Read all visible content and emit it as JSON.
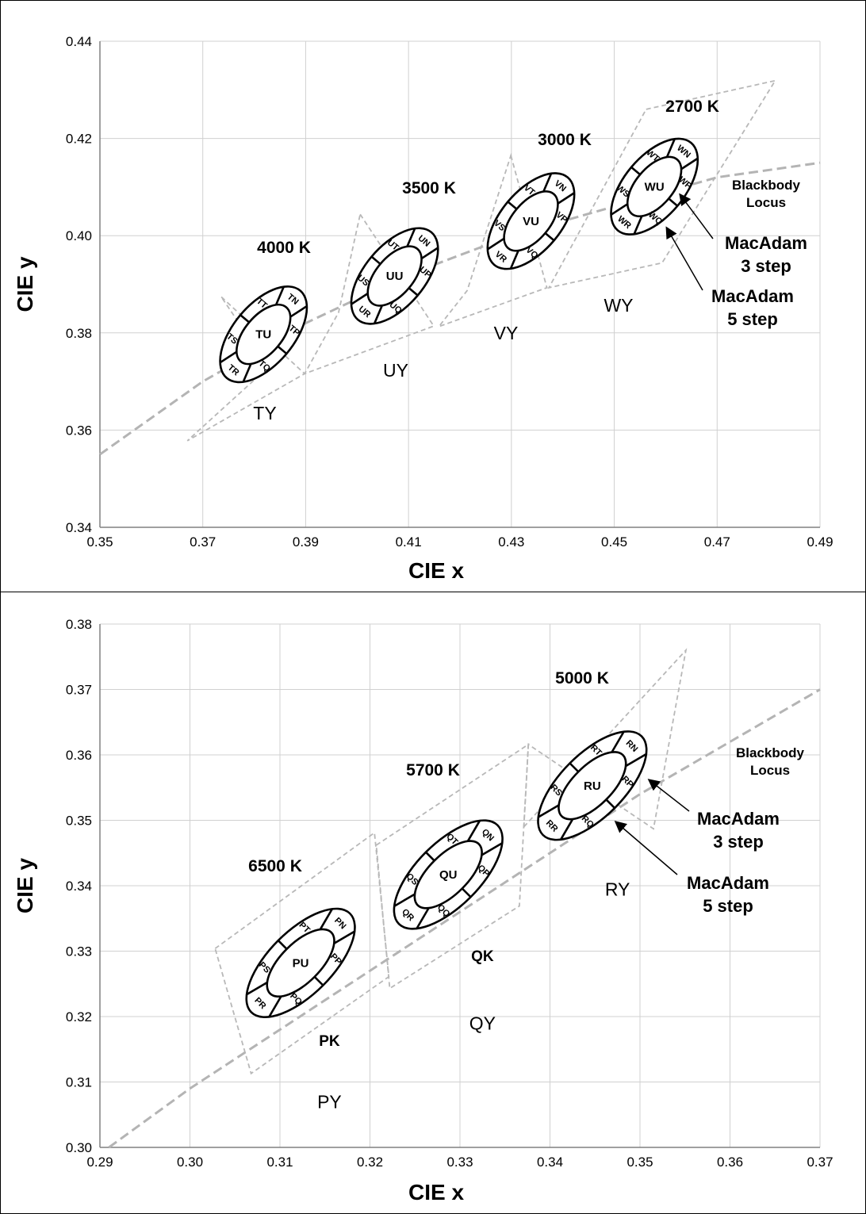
{
  "chart_data": [
    {
      "type": "scatter",
      "xlabel": "CIE x",
      "ylabel": "CIE y",
      "xlim": [
        0.35,
        0.49
      ],
      "ylim": [
        0.34,
        0.44
      ],
      "x_ticks": [
        "0.35",
        "0.37",
        "0.39",
        "0.41",
        "0.43",
        "0.45",
        "0.47",
        "0.49"
      ],
      "y_ticks": [
        "0.34",
        "0.36",
        "0.38",
        "0.40",
        "0.42",
        "0.44"
      ],
      "grid": true,
      "blackbody_label": [
        "Blackbody",
        "Locus"
      ],
      "blackbody_locus": [
        [
          0.35,
          0.355
        ],
        [
          0.37,
          0.37
        ],
        [
          0.39,
          0.382
        ],
        [
          0.41,
          0.392
        ],
        [
          0.43,
          0.4
        ],
        [
          0.45,
          0.406
        ],
        [
          0.47,
          0.412
        ],
        [
          0.49,
          0.415
        ]
      ],
      "macadam_3_label": [
        "MacAdam",
        "3 step"
      ],
      "macadam_5_label": [
        "MacAdam",
        "5 step"
      ],
      "quadrangles": [
        {
          "label": "TY",
          "corners": [
            [
              0.3736,
              0.3874
            ],
            [
              0.3898,
              0.3716
            ],
            [
              0.367,
              0.3578
            ],
            [
              0.3828,
              0.373
            ]
          ]
        },
        {
          "label": "UY",
          "corners": [
            [
              0.4006,
              0.4044
            ],
            [
              0.4149,
              0.3814
            ],
            [
              0.3898,
              0.3716
            ],
            [
              0.3964,
              0.3842
            ]
          ]
        },
        {
          "label": "VY",
          "corners": [
            [
              0.4299,
              0.4165
            ],
            [
              0.4369,
              0.3893
            ],
            [
              0.4159,
              0.3813
            ],
            [
              0.4214,
              0.3887
            ]
          ]
        },
        {
          "label": "WY",
          "corners": [
            [
              0.4562,
              0.426
            ],
            [
              0.4813,
              0.4319
            ],
            [
              0.4593,
              0.3944
            ],
            [
              0.4373,
              0.3893
            ]
          ]
        }
      ],
      "series": [
        {
          "name": "4000 K",
          "center": [
            0.3818,
            0.3797
          ],
          "center_bin": "TU",
          "bins": [
            "TN",
            "TP",
            "TQ",
            "TR",
            "TS",
            "TT"
          ],
          "label_offset": [
            0.3818,
            0.3944
          ]
        },
        {
          "name": "3500 K",
          "center": [
            0.4073,
            0.3917
          ],
          "center_bin": "UU",
          "bins": [
            "UN",
            "UP",
            "UQ",
            "UR",
            "US",
            "UT"
          ],
          "label_offset": [
            0.4073,
            0.4066
          ]
        },
        {
          "name": "3000 K",
          "center": [
            0.4338,
            0.403
          ],
          "center_bin": "VU",
          "bins": [
            "VN",
            "VP",
            "VQ",
            "VR",
            "VS",
            "VT"
          ],
          "label_offset": [
            0.4338,
            0.4173
          ]
        },
        {
          "name": "2700 K",
          "center": [
            0.4578,
            0.4101
          ],
          "center_bin": "WU",
          "bins": [
            "WN",
            "WP",
            "WQ",
            "WR",
            "WS",
            "WT"
          ],
          "label_offset": [
            0.464,
            0.424
          ]
        }
      ]
    },
    {
      "type": "scatter",
      "xlabel": "CIE x",
      "ylabel": "CIE y",
      "xlim": [
        0.29,
        0.37
      ],
      "ylim": [
        0.3,
        0.38
      ],
      "x_ticks": [
        "0.29",
        "0.30",
        "0.31",
        "0.32",
        "0.33",
        "0.34",
        "0.35",
        "0.36",
        "0.37"
      ],
      "y_ticks": [
        "0.30",
        "0.31",
        "0.32",
        "0.33",
        "0.34",
        "0.35",
        "0.36",
        "0.37",
        "0.38"
      ],
      "grid": true,
      "blackbody_label": [
        "Blackbody",
        "Locus"
      ],
      "blackbody_locus": [
        [
          0.291,
          0.3
        ],
        [
          0.3,
          0.309
        ],
        [
          0.31,
          0.318
        ],
        [
          0.32,
          0.327
        ],
        [
          0.33,
          0.336
        ],
        [
          0.34,
          0.345
        ],
        [
          0.35,
          0.354
        ],
        [
          0.36,
          0.362
        ],
        [
          0.37,
          0.37
        ]
      ],
      "macadam_3_label": [
        "MacAdam",
        "3 step"
      ],
      "macadam_5_label": [
        "MacAdam",
        "5 step"
      ],
      "region_labels": [
        {
          "label": "PY",
          "x": 0.3155,
          "y": 0.306,
          "bold": false
        },
        {
          "label": "PK",
          "x": 0.3155,
          "y": 0.3155,
          "bold": true
        },
        {
          "label": "QY",
          "x": 0.3325,
          "y": 0.318,
          "bold": false
        },
        {
          "label": "QK",
          "x": 0.3325,
          "y": 0.3285,
          "bold": true
        },
        {
          "label": "RY",
          "x": 0.3475,
          "y": 0.3385,
          "bold": false
        }
      ],
      "quadrangles": [
        {
          "label": "PY",
          "corners": [
            [
              0.3028,
              0.3304
            ],
            [
              0.3205,
              0.3481
            ],
            [
              0.3221,
              0.3261
            ],
            [
              0.3068,
              0.3113
            ]
          ]
        },
        {
          "label": "QY",
          "corners": [
            [
              0.3207,
              0.3462
            ],
            [
              0.3376,
              0.3616
            ],
            [
              0.3366,
              0.3369
            ],
            [
              0.3222,
              0.3243
            ]
          ]
        },
        {
          "label": "RY",
          "corners": [
            [
              0.3371,
              0.349
            ],
            [
              0.3551,
              0.376
            ],
            [
              0.3515,
              0.3487
            ],
            [
              0.3376,
              0.3616
            ]
          ]
        }
      ],
      "series": [
        {
          "name": "6500 K",
          "center": [
            0.3123,
            0.3282
          ],
          "center_bin": "PU",
          "bins": [
            "PN",
            "PP",
            "PQ",
            "PR",
            "PS",
            "PT"
          ],
          "label_offset": [
            0.3095,
            0.3418
          ]
        },
        {
          "name": "5700 K",
          "center": [
            0.3287,
            0.3417
          ],
          "center_bin": "QU",
          "bins": [
            "QN",
            "QP",
            "QQ",
            "QR",
            "QS",
            "QT"
          ],
          "label_offset": [
            0.326,
            0.357
          ]
        },
        {
          "name": "5000 K",
          "center": [
            0.3447,
            0.3553
          ],
          "center_bin": "RU",
          "bins": [
            "RN",
            "RP",
            "RQ",
            "RR",
            "RS",
            "RT"
          ],
          "label_offset": [
            0.3447,
            0.371
          ]
        }
      ]
    }
  ],
  "colors": {
    "ellipse": "#000000",
    "dashed": "#b8b8b8",
    "grid": "#d0d0d0"
  }
}
